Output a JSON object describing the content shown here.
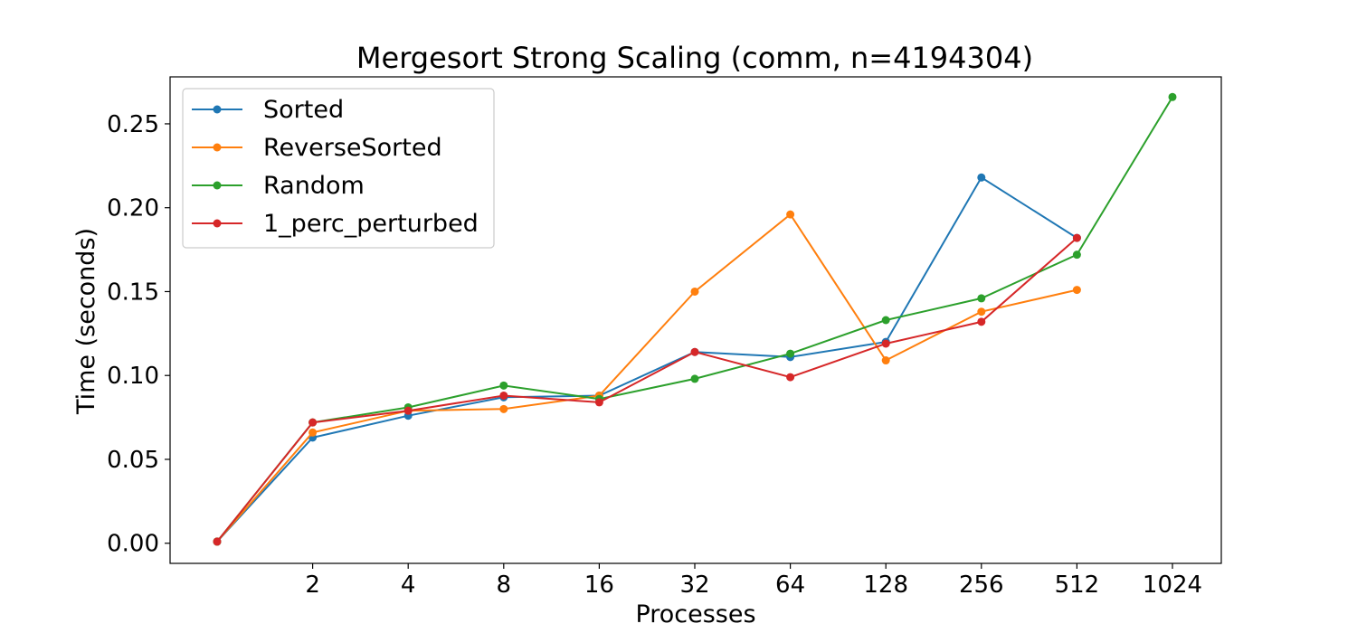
{
  "chart_data": {
    "type": "line",
    "title": "Mergesort Strong Scaling (comm, n=4194304)",
    "xlabel": "Processes",
    "ylabel": "Time (seconds)",
    "x_scale": "log2",
    "x_ticks": [
      "2",
      "4",
      "8",
      "16",
      "32",
      "64",
      "128",
      "256",
      "512",
      "1024"
    ],
    "y_ticks": [
      "0.00",
      "0.05",
      "0.10",
      "0.15",
      "0.20",
      "0.25"
    ],
    "ylim": [
      -0.012,
      0.278
    ],
    "grid": false,
    "legend_position": "upper-left",
    "series": [
      {
        "name": "Sorted",
        "color": "#1f77b4",
        "x": [
          1,
          2,
          4,
          8,
          16,
          32,
          64,
          128,
          256,
          512
        ],
        "y": [
          0.001,
          0.063,
          0.076,
          0.087,
          0.088,
          0.114,
          0.111,
          0.12,
          0.218,
          0.182
        ]
      },
      {
        "name": "ReverseSorted",
        "color": "#ff7f0e",
        "x": [
          1,
          2,
          4,
          8,
          16,
          32,
          64,
          128,
          256,
          512
        ],
        "y": [
          0.001,
          0.066,
          0.079,
          0.08,
          0.088,
          0.15,
          0.196,
          0.109,
          0.138,
          0.151
        ]
      },
      {
        "name": "Random",
        "color": "#2ca02c",
        "x": [
          1,
          2,
          4,
          8,
          16,
          32,
          64,
          128,
          256,
          512,
          1024
        ],
        "y": [
          0.001,
          0.072,
          0.081,
          0.094,
          0.086,
          0.098,
          0.113,
          0.133,
          0.146,
          0.172,
          0.266
        ]
      },
      {
        "name": "1_perc_perturbed",
        "color": "#d62728",
        "x": [
          1,
          2,
          4,
          8,
          16,
          32,
          64,
          128,
          256,
          512
        ],
        "y": [
          0.001,
          0.072,
          0.079,
          0.088,
          0.084,
          0.114,
          0.099,
          0.119,
          0.132,
          0.182
        ]
      }
    ]
  }
}
